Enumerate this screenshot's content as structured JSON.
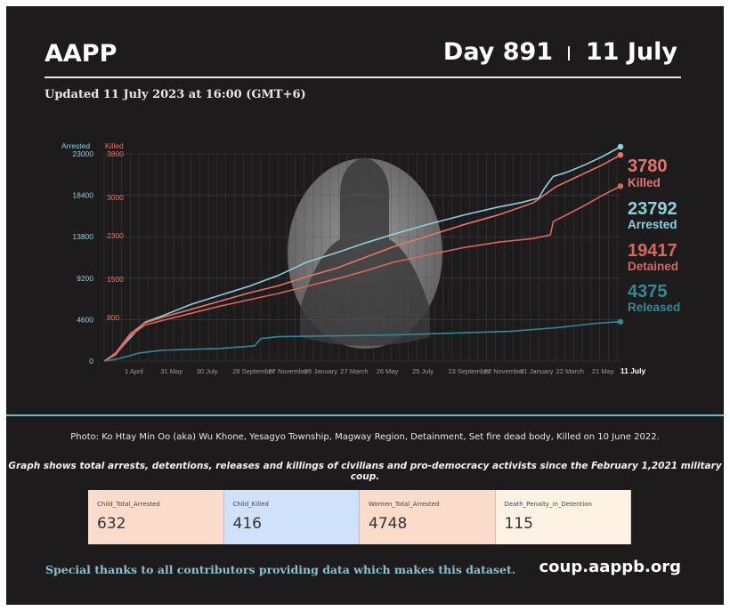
{
  "header": {
    "org": "AAPP",
    "day_label": "Day 891",
    "date_label": "11 July",
    "updated": "Updated 11 July 2023 at 16:00 (GMT+6)"
  },
  "colors": {
    "arrested": "#8ed0dc",
    "killed": "#e6756b",
    "detained": "#d9675e",
    "released": "#2f8a99"
  },
  "chart_data": {
    "type": "line",
    "axes": {
      "left_label": "Arrested",
      "right_label": "Killed",
      "left_ticks": [
        0,
        4600,
        9200,
        13800,
        18400,
        23000
      ],
      "right_ticks": [
        800,
        1500,
        2300,
        3000,
        3800
      ],
      "left_range": [
        0,
        23000
      ],
      "right_range": [
        0,
        3800
      ]
    },
    "x_ticks": [
      "1 April",
      "31 May",
      "30 July",
      "28 September",
      "27 November",
      "26 January",
      "27 March",
      "26 May",
      "25 July",
      "23 September",
      "22 November",
      "21 January",
      "22 March",
      "21 May",
      "11 July"
    ],
    "x_range": [
      0,
      891
    ],
    "grid": true,
    "series": [
      {
        "name": "Arrested",
        "axis": "left",
        "points": [
          [
            0,
            0
          ],
          [
            20,
            800
          ],
          [
            45,
            2600
          ],
          [
            70,
            4300
          ],
          [
            100,
            5000
          ],
          [
            150,
            6300
          ],
          [
            200,
            7300
          ],
          [
            250,
            8300
          ],
          [
            300,
            9500
          ],
          [
            350,
            11000
          ],
          [
            400,
            12000
          ],
          [
            450,
            13100
          ],
          [
            500,
            14100
          ],
          [
            560,
            15200
          ],
          [
            620,
            16200
          ],
          [
            680,
            17100
          ],
          [
            720,
            17600
          ],
          [
            750,
            18100
          ],
          [
            760,
            19200
          ],
          [
            775,
            20500
          ],
          [
            800,
            21000
          ],
          [
            830,
            21800
          ],
          [
            860,
            22700
          ],
          [
            891,
            23792
          ]
        ]
      },
      {
        "name": "Killed",
        "axis": "right",
        "points": [
          [
            0,
            0
          ],
          [
            20,
            150
          ],
          [
            45,
            500
          ],
          [
            70,
            700
          ],
          [
            100,
            800
          ],
          [
            150,
            950
          ],
          [
            200,
            1100
          ],
          [
            250,
            1250
          ],
          [
            300,
            1380
          ],
          [
            350,
            1550
          ],
          [
            400,
            1700
          ],
          [
            450,
            1900
          ],
          [
            500,
            2100
          ],
          [
            560,
            2300
          ],
          [
            620,
            2500
          ],
          [
            680,
            2680
          ],
          [
            740,
            2900
          ],
          [
            780,
            3200
          ],
          [
            830,
            3450
          ],
          [
            860,
            3600
          ],
          [
            891,
            3780
          ]
        ]
      },
      {
        "name": "Detained",
        "axis": "left",
        "points": [
          [
            0,
            0
          ],
          [
            20,
            700
          ],
          [
            45,
            2800
          ],
          [
            70,
            4000
          ],
          [
            100,
            4500
          ],
          [
            150,
            5300
          ],
          [
            200,
            6100
          ],
          [
            250,
            6800
          ],
          [
            300,
            7500
          ],
          [
            350,
            8300
          ],
          [
            400,
            9100
          ],
          [
            450,
            10000
          ],
          [
            500,
            11000
          ],
          [
            560,
            11800
          ],
          [
            620,
            12600
          ],
          [
            680,
            13200
          ],
          [
            740,
            13600
          ],
          [
            770,
            14000
          ],
          [
            775,
            15500
          ],
          [
            800,
            16300
          ],
          [
            830,
            17300
          ],
          [
            860,
            18400
          ],
          [
            891,
            19417
          ]
        ]
      },
      {
        "name": "Released",
        "axis": "left",
        "points": [
          [
            0,
            0
          ],
          [
            20,
            200
          ],
          [
            45,
            600
          ],
          [
            60,
            900
          ],
          [
            100,
            1200
          ],
          [
            200,
            1400
          ],
          [
            260,
            1700
          ],
          [
            270,
            2500
          ],
          [
            300,
            2700
          ],
          [
            400,
            2800
          ],
          [
            500,
            2900
          ],
          [
            600,
            3100
          ],
          [
            700,
            3300
          ],
          [
            780,
            3700
          ],
          [
            850,
            4200
          ],
          [
            891,
            4375
          ]
        ]
      }
    ],
    "end_labels": [
      {
        "value": "3780",
        "label": "Killed"
      },
      {
        "value": "23792",
        "label": "Arrested"
      },
      {
        "value": "19417",
        "label": "Detained"
      },
      {
        "value": "4375",
        "label": "Released"
      }
    ]
  },
  "captions": {
    "photo": "Photo: Ko Htay Min Oo (aka) Wu Khone, Yesagyo Township, Magway Region, Detainment, Set fire dead body, Killed on 10 June 2022.",
    "graph_note": "Graph shows total arrests, detentions, releases and killings of civilians and pro-democracy activists since the February 1,2021 military coup."
  },
  "stats": [
    {
      "label": "Child_Total_Arrested",
      "value": "632",
      "bg": "#fbdccb"
    },
    {
      "label": "Child_Killed",
      "value": "416",
      "bg": "#cfe1fb"
    },
    {
      "label": "Women_Total_Arrested",
      "value": "4748",
      "bg": "#fbdccb"
    },
    {
      "label": "Death_Penalty_in_Detention",
      "value": "115",
      "bg": "#fdf2e3"
    }
  ],
  "footer": {
    "thanks": "Special thanks to all contributors providing data which makes this dataset.",
    "site": "coup.aappb.org"
  }
}
